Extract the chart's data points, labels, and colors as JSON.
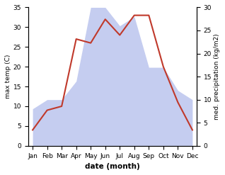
{
  "months": [
    "Jan",
    "Feb",
    "Mar",
    "Apr",
    "May",
    "Jun",
    "Jul",
    "Aug",
    "Sep",
    "Oct",
    "Nov",
    "Dec"
  ],
  "temperature": [
    4,
    9,
    10,
    27,
    26,
    32,
    28,
    33,
    33,
    20,
    11,
    4
  ],
  "precipitation": [
    8,
    10,
    10,
    14,
    30,
    30,
    26,
    28,
    17,
    17,
    12,
    10
  ],
  "temp_color": "#c0392b",
  "precip_color": "#c5cdf0",
  "ylabel_left": "max temp (C)",
  "ylabel_right": "med. precipitation (kg/m2)",
  "xlabel": "date (month)",
  "ylim_left": [
    0,
    35
  ],
  "ylim_right": [
    0,
    30
  ],
  "yticks_left": [
    0,
    5,
    10,
    15,
    20,
    25,
    30,
    35
  ],
  "yticks_right": [
    0,
    5,
    10,
    15,
    20,
    25,
    30
  ],
  "bg_color": "#ffffff",
  "plot_bg_color": "#ffffff"
}
